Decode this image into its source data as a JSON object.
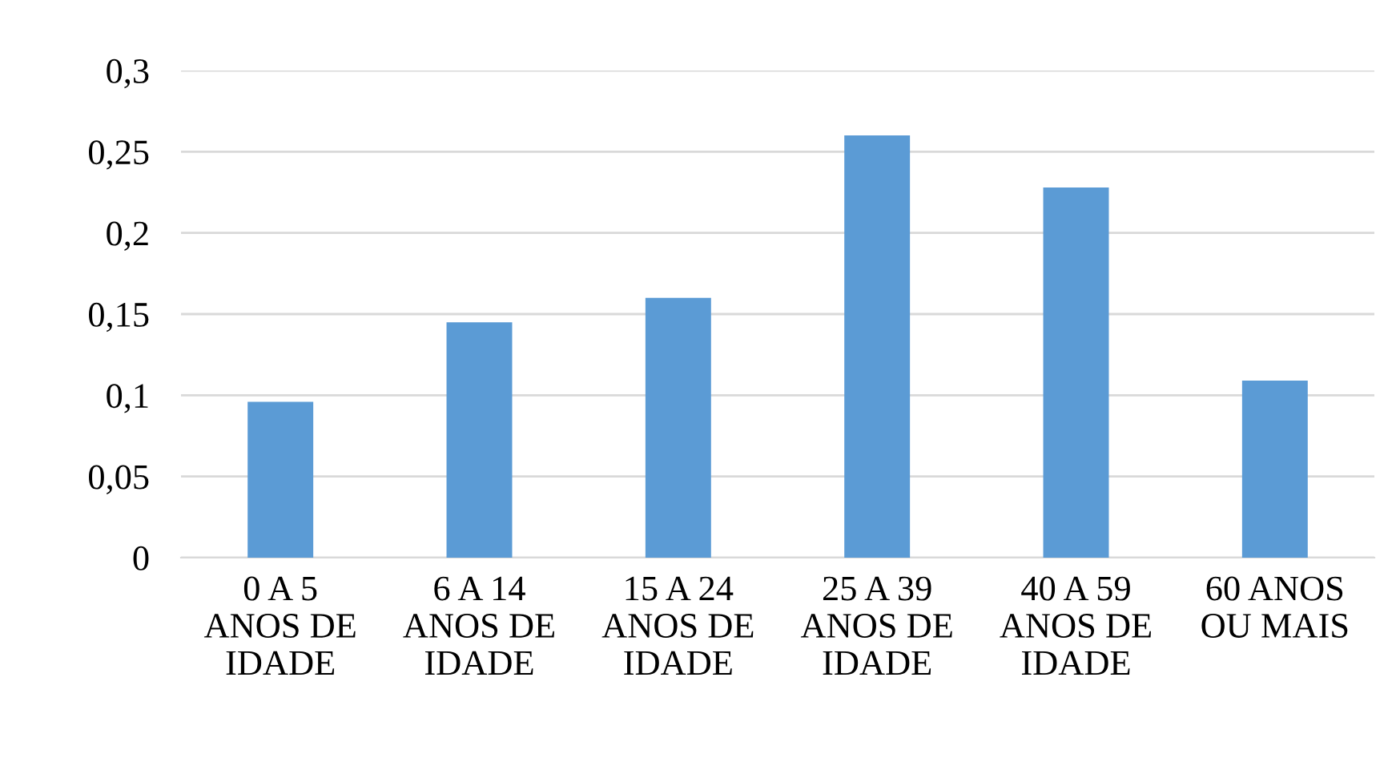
{
  "chart_data": {
    "type": "bar",
    "categories": [
      "0 A 5\nANOS DE\nIDADE",
      "6 A 14\nANOS DE\nIDADE",
      "15 A 24\nANOS DE\nIDADE",
      "25 A 39\nANOS DE\nIDADE",
      "40 A 59\nANOS DE\nIDADE",
      "60 ANOS\nOU MAIS"
    ],
    "values": [
      0.096,
      0.145,
      0.16,
      0.26,
      0.228,
      0.109
    ],
    "color": "#5b9bd5",
    "ylim": [
      0,
      0.3
    ],
    "yticks": [
      {
        "value": 0,
        "label": "0"
      },
      {
        "value": 0.05,
        "label": "0,05"
      },
      {
        "value": 0.1,
        "label": "0,1"
      },
      {
        "value": 0.15,
        "label": "0,15"
      },
      {
        "value": 0.2,
        "label": "0,2"
      },
      {
        "value": 0.25,
        "label": "0,25"
      },
      {
        "value": 0.3,
        "label": "0,3"
      }
    ],
    "grid": "y",
    "legend": false
  }
}
